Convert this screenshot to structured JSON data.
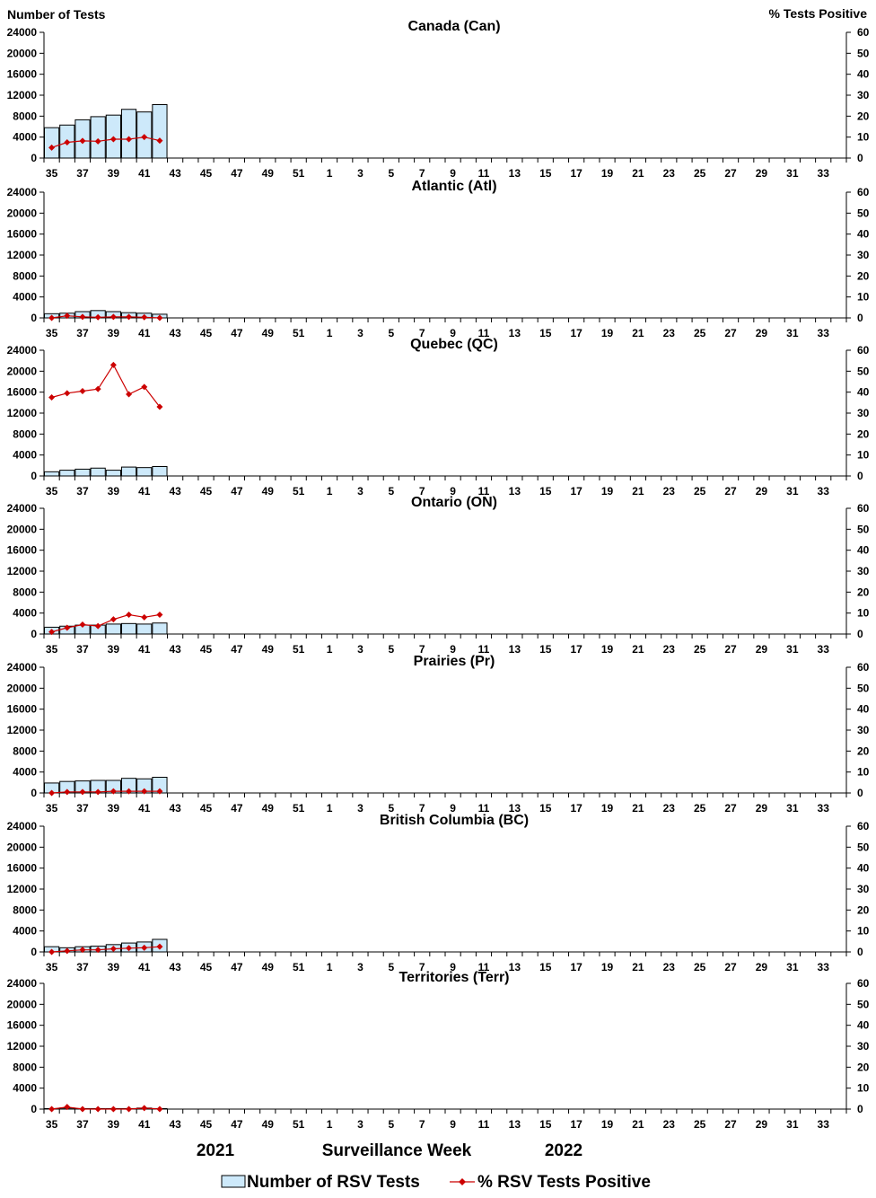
{
  "colors": {
    "bar_fill": "#cde9fa",
    "bar_stroke": "#000000",
    "line": "#cc0000",
    "axis": "#000000"
  },
  "axis_titles": {
    "left": "Number of Tests",
    "right": "% Tests Positive"
  },
  "footer": {
    "year_left": "2021",
    "x_title": "Surveillance Week",
    "year_right": "2022"
  },
  "legend": {
    "bar_label": "Number of RSV Tests",
    "line_label": "% RSV Tests Positive"
  },
  "chart_data": {
    "type": "bar+line",
    "x_weeks": [
      35,
      36,
      37,
      38,
      39,
      40,
      41,
      42,
      43,
      44,
      45,
      46,
      47,
      48,
      49,
      50,
      51,
      52,
      1,
      2,
      3,
      4,
      5,
      6,
      7,
      8,
      9,
      10,
      11,
      12,
      13,
      14,
      15,
      16,
      17,
      18,
      19,
      20,
      21,
      22,
      23,
      24,
      25,
      26,
      27,
      28,
      29,
      30,
      31,
      32,
      33,
      34
    ],
    "x_tick_labels": [
      "35",
      "37",
      "39",
      "41",
      "43",
      "45",
      "47",
      "49",
      "51",
      "1",
      "3",
      "5",
      "7",
      "9",
      "11",
      "13",
      "15",
      "17",
      "19",
      "21",
      "23",
      "25",
      "27",
      "29",
      "31",
      "33"
    ],
    "y_left_ticks": [
      "0",
      "4000",
      "8000",
      "12000",
      "16000",
      "20000",
      "24000"
    ],
    "y_right_ticks": [
      "0",
      "10",
      "20",
      "30",
      "40",
      "50",
      "60"
    ],
    "ylim_left": [
      0,
      24000
    ],
    "ylim_right": [
      0,
      60
    ],
    "panels": [
      {
        "title": "Canada (Can)",
        "series": [
          {
            "name": "Number of RSV Tests",
            "type": "bar",
            "values": [
              5800,
              6300,
              7300,
              7900,
              8200,
              9300,
              8800,
              10200
            ]
          },
          {
            "name": "% RSV Tests Positive",
            "type": "line",
            "values": [
              5,
              7.5,
              8.2,
              8,
              9,
              9,
              10,
              8.3
            ]
          }
        ]
      },
      {
        "title": "Atlantic (Atl)",
        "series": [
          {
            "name": "Number of RSV Tests",
            "type": "bar",
            "values": [
              800,
              900,
              1200,
              1400,
              1200,
              1000,
              900,
              700
            ]
          },
          {
            "name": "% RSV Tests Positive",
            "type": "line",
            "values": [
              0,
              1,
              0.5,
              0.3,
              0.5,
              0.5,
              0.3,
              0
            ]
          }
        ]
      },
      {
        "title": "Quebec (QC)",
        "series": [
          {
            "name": "Number of RSV Tests",
            "type": "bar",
            "values": [
              800,
              1100,
              1300,
              1500,
              1100,
              1700,
              1600,
              1800
            ]
          },
          {
            "name": "% RSV Tests Positive",
            "type": "line",
            "values": [
              37.5,
              39.5,
              40.5,
              41.5,
              53,
              39,
              42.5,
              33
            ]
          }
        ]
      },
      {
        "title": "Ontario (ON)",
        "series": [
          {
            "name": "Number of RSV Tests",
            "type": "bar",
            "values": [
              1300,
              1500,
              1700,
              1700,
              1900,
              2000,
              1900,
              2100
            ]
          },
          {
            "name": "% RSV Tests Positive",
            "type": "line",
            "values": [
              1,
              3,
              4.5,
              3.8,
              7,
              9.2,
              8,
              9.2
            ]
          }
        ]
      },
      {
        "title": "Prairies (Pr)",
        "series": [
          {
            "name": "Number of RSV Tests",
            "type": "bar",
            "values": [
              1900,
              2200,
              2300,
              2400,
              2400,
              2800,
              2700,
              3000
            ]
          },
          {
            "name": "% RSV Tests Positive",
            "type": "line",
            "values": [
              0,
              0.5,
              0.5,
              0.5,
              0.8,
              0.8,
              0.8,
              0.8
            ]
          }
        ]
      },
      {
        "title": "British Columbia (BC)",
        "series": [
          {
            "name": "Number of RSV Tests",
            "type": "bar",
            "values": [
              1000,
              800,
              1000,
              1100,
              1400,
              1700,
              1900,
              2400
            ]
          },
          {
            "name": "% RSV Tests Positive",
            "type": "line",
            "values": [
              0,
              0.5,
              1,
              1,
              1.5,
              1.8,
              2,
              2.5
            ]
          }
        ]
      },
      {
        "title": "Territories (Terr)",
        "series": [
          {
            "name": "Number of RSV Tests",
            "type": "bar",
            "values": [
              100,
              200,
              100,
              100,
              100,
              100,
              200,
              100
            ]
          },
          {
            "name": "% RSV Tests Positive",
            "type": "line",
            "values": [
              0,
              1,
              0,
              0,
              0,
              0,
              0.5,
              0
            ]
          }
        ]
      }
    ]
  }
}
